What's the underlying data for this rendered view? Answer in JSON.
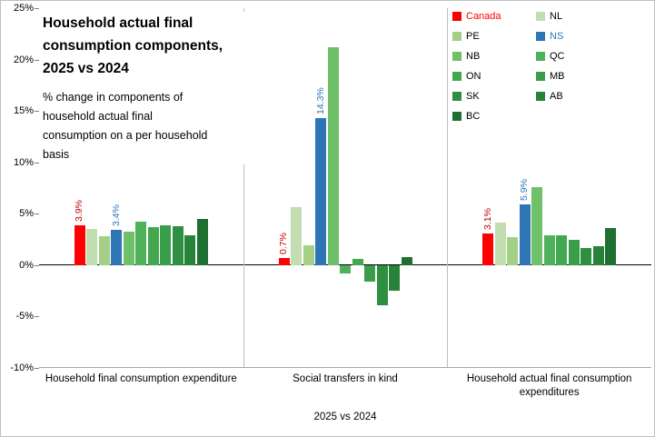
{
  "chart_data": {
    "type": "bar",
    "title": "Household actual final\nconsumption components,\n2025 vs 2024",
    "subtitle": "% change in components of\nhousehold actual final\nconsumption on a per household\nbasis",
    "xlabel": "2025 vs 2024",
    "ylim": [
      -10,
      25
    ],
    "ytick_step": 5,
    "ytick_suffix": "%",
    "grid": "vertical-category-separators-only",
    "legend_position": "top-right-two-columns",
    "axis_colors": {
      "zero_line": "#000000",
      "plot_border": "#a6a6a6",
      "separator": "#bfbfbf"
    },
    "categories": [
      "Household final consumption expenditure",
      "Social transfers in kind",
      "Household actual final consumption expenditures"
    ],
    "series": [
      {
        "name": "Canada",
        "color": "#ff0000",
        "legend_text_color": "#ff0000",
        "label_color": "#c00000",
        "values": [
          3.9,
          0.7,
          3.1
        ],
        "data_labels": [
          "3.9%",
          "0.7%",
          "3.1%"
        ]
      },
      {
        "name": "NL",
        "color": "#c2ddb0",
        "values": [
          3.5,
          5.6,
          4.1
        ]
      },
      {
        "name": "PE",
        "color": "#a3cf87",
        "values": [
          2.8,
          1.9,
          2.7
        ]
      },
      {
        "name": "NS",
        "color": "#2e75b6",
        "legend_text_color": "#2e75b6",
        "label_color": "#2e75b6",
        "values": [
          3.4,
          14.3,
          5.9
        ],
        "data_labels": [
          "3.4%",
          "14.3%",
          "5.9%"
        ]
      },
      {
        "name": "NB",
        "color": "#6ec069",
        "values": [
          3.3,
          21.2,
          7.6
        ]
      },
      {
        "name": "QC",
        "color": "#4fb25a",
        "values": [
          4.2,
          -0.8,
          2.9
        ]
      },
      {
        "name": "ON",
        "color": "#43a750",
        "values": [
          3.7,
          0.6,
          2.9
        ]
      },
      {
        "name": "MB",
        "color": "#3a9d4a",
        "values": [
          3.9,
          -1.6,
          2.5
        ]
      },
      {
        "name": "SK",
        "color": "#2f8f41",
        "values": [
          3.8,
          -3.9,
          1.7
        ]
      },
      {
        "name": "AB",
        "color": "#28833a",
        "values": [
          2.9,
          -2.5,
          1.8
        ]
      },
      {
        "name": "BC",
        "color": "#1e7031",
        "values": [
          4.5,
          0.8,
          3.6
        ]
      }
    ]
  }
}
